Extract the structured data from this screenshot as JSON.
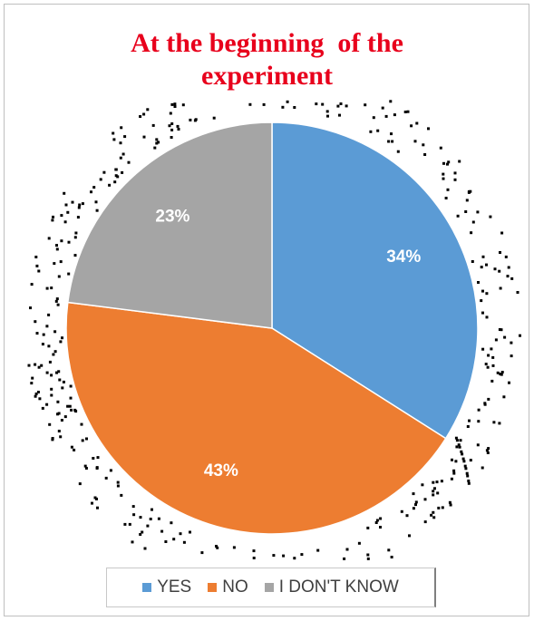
{
  "chart_data": {
    "type": "pie",
    "title_lines": [
      "At the beginning  of the",
      "experiment"
    ],
    "slices": [
      {
        "label": "YES",
        "value": 34,
        "display": "34%",
        "color": "#5b9bd5"
      },
      {
        "label": "NO",
        "value": 43,
        "display": "43%",
        "color": "#ed7d31"
      },
      {
        "label": "I DON'T KNOW",
        "value": 23,
        "display": "23%",
        "color": "#a5a5a5"
      }
    ],
    "legend_position": "bottom"
  }
}
